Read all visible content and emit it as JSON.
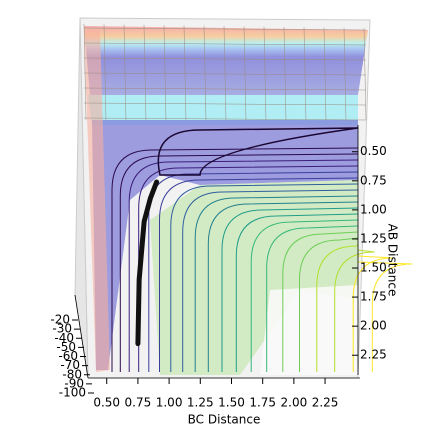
{
  "chart_data": {
    "type": "surface3d",
    "xlabel": "BC Distance",
    "ylabel": "AB Distance",
    "xlim": [
      0.35,
      2.53
    ],
    "xticks": [
      {
        "value": 0.5,
        "label": "0.50"
      },
      {
        "value": 0.75,
        "label": "0.75"
      },
      {
        "value": 1.0,
        "label": "1.00"
      },
      1.25,
      {
        "value": 1.5,
        "label": "1.50"
      },
      1.75,
      {
        "value": 2.0,
        "label": "2.00"
      },
      2.25
    ],
    "ylim": [
      0.27,
      2.42
    ],
    "yticks": [
      {
        "value": 0.5,
        "label": "0.50"
      },
      {
        "value": 0.75,
        "label": "0.75"
      },
      {
        "value": 1.0,
        "label": "1.00"
      },
      1.25,
      {
        "value": 1.5,
        "label": "1.50"
      },
      1.75,
      {
        "value": 2.0,
        "label": "2.00"
      },
      2.25
    ],
    "zlim": [
      -100,
      -20
    ],
    "zticks": [
      -20,
      -30,
      -40,
      -50,
      -60,
      -70,
      -80,
      -90,
      -100
    ],
    "trajectory": {
      "color": "#111111",
      "x": [
        0.75,
        0.76,
        0.8,
        0.85,
        0.9
      ],
      "y": [
        2.15,
        1.6,
        1.1,
        0.9,
        0.76
      ]
    }
  }
}
